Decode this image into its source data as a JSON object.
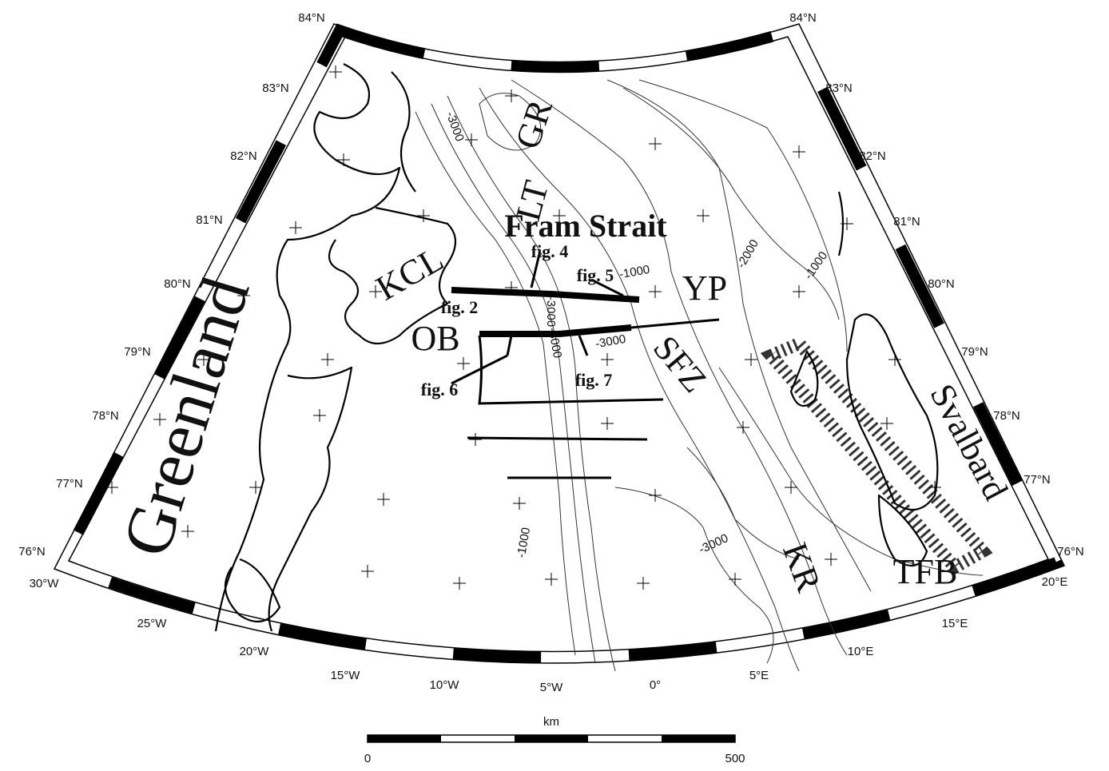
{
  "map": {
    "latitude_labels_left": [
      "84°N",
      "83°N",
      "82°N",
      "81°N",
      "80°N",
      "79°N",
      "78°N",
      "77°N",
      "76°N"
    ],
    "latitude_labels_right": [
      "84°N",
      "83°N",
      "82°N",
      "81°N",
      "80°N",
      "79°N",
      "78°N",
      "77°N",
      "76°N"
    ],
    "longitude_labels": [
      "30°W",
      "25°W",
      "20°W",
      "15°W",
      "10°W",
      "5°W",
      "0°",
      "5°E",
      "10°E",
      "15°E",
      "20°E"
    ],
    "place_labels": [
      "Greenland",
      "Svalbard",
      "Fram Strait",
      "KCL",
      "OB",
      "YP",
      "SFZ",
      "KR",
      "TFB",
      "LT",
      "GR"
    ],
    "figure_labels": [
      "fig. 2",
      "fig. 4",
      "fig. 5",
      "fig. 6",
      "fig. 7"
    ],
    "contour_labels": [
      "-3000",
      "-1000",
      "-2000",
      "-1000",
      "-3000",
      "-3000",
      "-3000",
      "-1000",
      "-3000"
    ],
    "scale": {
      "unit": "km",
      "ticks": [
        0,
        500
      ]
    }
  }
}
